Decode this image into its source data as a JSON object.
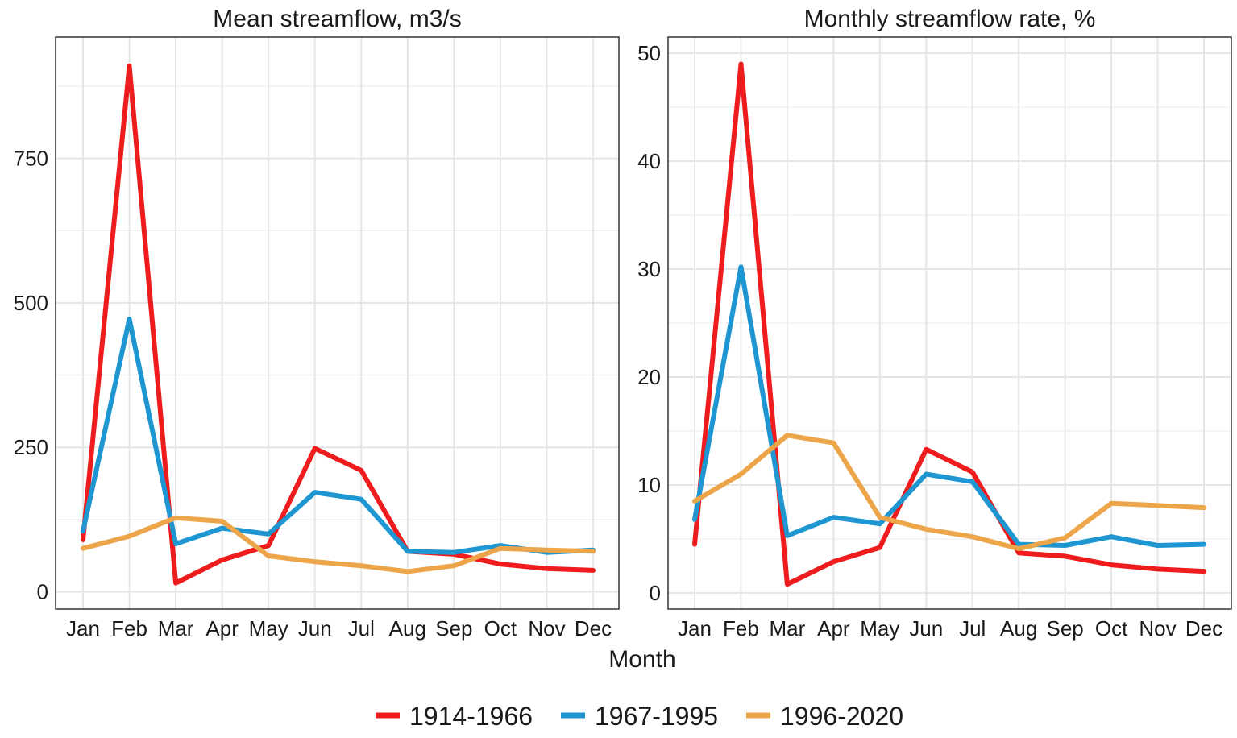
{
  "chart_data": [
    {
      "type": "line",
      "title": "Mean streamflow, m3/s",
      "xlabel": "",
      "ylabel": "",
      "categories": [
        "Jan",
        "Feb",
        "Mar",
        "Apr",
        "May",
        "Jun",
        "Jul",
        "Aug",
        "Sep",
        "Oct",
        "Nov",
        "Dec"
      ],
      "ylim": [
        -30,
        960
      ],
      "yticks": [
        0,
        250,
        500,
        750
      ],
      "yminor": [
        125,
        375,
        625,
        875
      ],
      "grid": true,
      "series": [
        {
          "name": "1914-1966",
          "color": "#ee1c1c",
          "values": [
            90,
            910,
            15,
            55,
            80,
            248,
            210,
            70,
            65,
            48,
            40,
            37
          ]
        },
        {
          "name": "1967-1995",
          "color": "#1e96d1",
          "values": [
            105,
            472,
            83,
            110,
            100,
            172,
            160,
            70,
            68,
            80,
            68,
            72
          ]
        },
        {
          "name": "1996-2020",
          "color": "#eda54a",
          "values": [
            75,
            96,
            128,
            122,
            62,
            52,
            45,
            35,
            45,
            75,
            72,
            70
          ]
        }
      ]
    },
    {
      "type": "line",
      "title": "Monthly streamflow rate, %",
      "xlabel": "",
      "ylabel": "",
      "categories": [
        "Jan",
        "Feb",
        "Mar",
        "Apr",
        "May",
        "Jun",
        "Jul",
        "Aug",
        "Sep",
        "Oct",
        "Nov",
        "Dec"
      ],
      "ylim": [
        -1.5,
        51.5
      ],
      "yticks": [
        0,
        10,
        20,
        30,
        40,
        50
      ],
      "yminor": [
        5,
        15,
        25,
        35,
        45
      ],
      "grid": true,
      "series": [
        {
          "name": "1914-1966",
          "color": "#ee1c1c",
          "values": [
            4.5,
            49,
            0.8,
            2.9,
            4.2,
            13.3,
            11.2,
            3.7,
            3.4,
            2.6,
            2.2,
            2.0
          ]
        },
        {
          "name": "1967-1995",
          "color": "#1e96d1",
          "values": [
            6.8,
            30.2,
            5.3,
            7.0,
            6.4,
            11.0,
            10.3,
            4.5,
            4.4,
            5.2,
            4.4,
            4.5
          ]
        },
        {
          "name": "1996-2020",
          "color": "#eda54a",
          "values": [
            8.5,
            11.0,
            14.6,
            13.9,
            7.0,
            5.9,
            5.2,
            4.1,
            5.1,
            8.3,
            8.1,
            7.9
          ]
        }
      ]
    }
  ],
  "shared_xlabel": "Month",
  "legend": {
    "position": "bottom",
    "items": [
      {
        "label": "1914-1966",
        "color": "#ee1c1c"
      },
      {
        "label": "1967-1995",
        "color": "#1e96d1"
      },
      {
        "label": "1996-2020",
        "color": "#eda54a"
      }
    ]
  }
}
